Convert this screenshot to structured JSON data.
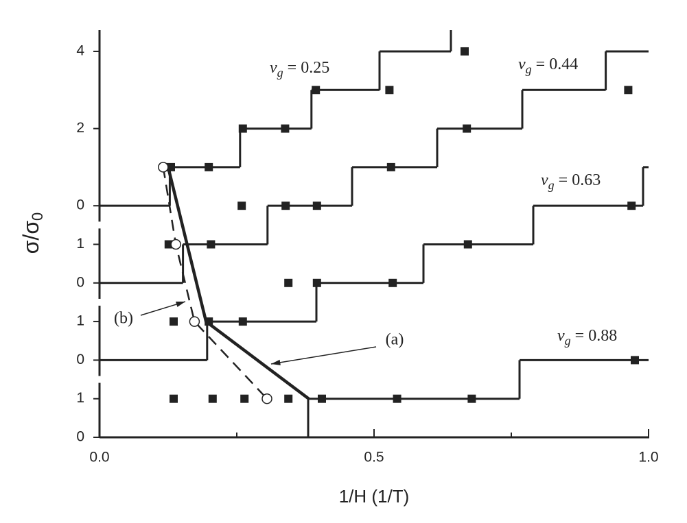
{
  "chart_data": {
    "type": "step",
    "xlabel": "1/H   (1/T)",
    "ylabel": "σ/σ",
    "ylabel_subscript": "0",
    "xlim": [
      0,
      1.0
    ],
    "ylim": [
      0,
      10.55
    ],
    "xticks": [
      {
        "value": 0,
        "label": "0.0"
      },
      0.5,
      {
        "value": 1.0,
        "label": "1.0"
      }
    ],
    "xminorticks": [
      0.25,
      0.75
    ],
    "yticks": [
      0,
      1,
      {
        "value": 2,
        "label": "0"
      },
      {
        "value": 3,
        "label": "1"
      },
      {
        "value": 4,
        "label": "0"
      },
      {
        "value": 5,
        "label": "1"
      },
      {
        "value": 6,
        "label": "0"
      },
      {
        "value": 8,
        "label": "2"
      },
      {
        "value": 10,
        "label": "4"
      }
    ],
    "series_label": {
      "symbol": "v",
      "subscript": "g",
      "relation": "="
    },
    "color": "#222222",
    "series": [
      {
        "name": "0.25",
        "step_x": [
          0,
          0.128,
          0.256,
          0.386,
          0.51,
          0.64
        ],
        "step_values": [
          6,
          7,
          8,
          9,
          10,
          10.6
        ],
        "points_x": [
          0.13,
          0.199,
          0.261,
          0.338,
          0.394,
          0.528,
          0.665
        ],
        "points_values": [
          7,
          7,
          8,
          8,
          9,
          9,
          10
        ]
      },
      {
        "name": "0.44",
        "step_x": [
          0,
          0.152,
          0.306,
          0.46,
          0.615,
          0.77,
          0.922
        ],
        "step_values": [
          4,
          5,
          6,
          7,
          8,
          9,
          10
        ],
        "points_x": [
          0.126,
          0.203,
          0.259,
          0.339,
          0.396,
          0.531,
          0.669,
          0.963
        ],
        "points_values": [
          5,
          5,
          6,
          6,
          6,
          7,
          8,
          9
        ]
      },
      {
        "name": "0.63",
        "step_x": [
          0,
          0.196,
          0.395,
          0.59,
          0.79,
          0.99
        ],
        "step_values": [
          2,
          3,
          4,
          5,
          6,
          7
        ],
        "points_x": [
          0.135,
          0.199,
          0.261,
          0.344,
          0.396,
          0.534,
          0.671,
          0.969
        ],
        "points_values": [
          3,
          3,
          3,
          4,
          4,
          4,
          5,
          6
        ]
      },
      {
        "name": "0.88",
        "step_x": [
          0,
          0.38,
          0.765
        ],
        "step_values": [
          0,
          1,
          2
        ],
        "points_x": [
          0.135,
          0.206,
          0.264,
          0.344,
          0.405,
          0.542,
          0.678,
          0.975
        ],
        "points_values": [
          1,
          1,
          1,
          1,
          1,
          1,
          1,
          2
        ]
      }
    ],
    "curves": [
      {
        "name": "(a)",
        "style": "solid",
        "x": [
          0.125,
          0.194,
          0.381
        ],
        "values": [
          7,
          3,
          1
        ]
      },
      {
        "name": "(b)",
        "style": "dashed",
        "x": [
          0.116,
          0.139,
          0.173,
          0.305
        ],
        "values": [
          7,
          5,
          3,
          1
        ],
        "markers": "open-circle"
      }
    ]
  }
}
